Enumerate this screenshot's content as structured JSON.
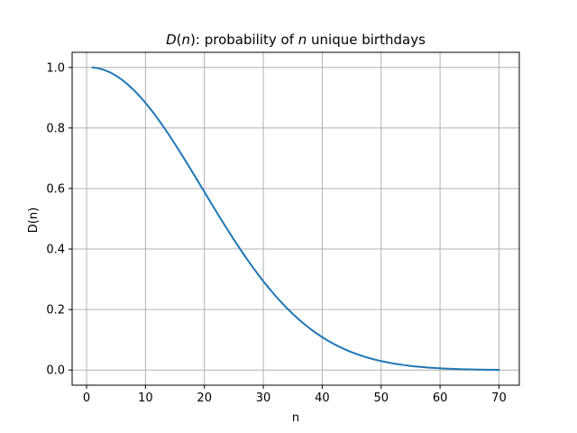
{
  "chart_data": {
    "type": "line",
    "title_parts": [
      "D",
      "(",
      "n",
      "): probability of ",
      "n",
      " unique birthdays"
    ],
    "xlabel": "n",
    "ylabel": "D(n)",
    "xlim": [
      -2.45,
      73.45
    ],
    "ylim": [
      -0.05,
      1.05
    ],
    "xticks": [
      0,
      10,
      20,
      30,
      40,
      50,
      60,
      70
    ],
    "xtick_labels": [
      "0",
      "10",
      "20",
      "30",
      "40",
      "50",
      "60",
      "70"
    ],
    "yticks": [
      0.0,
      0.2,
      0.4,
      0.6,
      0.8,
      1.0
    ],
    "ytick_labels": [
      "0.0",
      "0.2",
      "0.4",
      "0.6",
      "0.8",
      "1.0"
    ],
    "grid": true,
    "series": [
      {
        "color": "#1f77b4",
        "x": [
          1,
          2,
          3,
          4,
          5,
          6,
          7,
          8,
          9,
          10,
          11,
          12,
          13,
          14,
          15,
          16,
          17,
          18,
          19,
          20,
          21,
          22,
          23,
          24,
          25,
          26,
          27,
          28,
          29,
          30,
          31,
          32,
          33,
          34,
          35,
          36,
          37,
          38,
          39,
          40,
          41,
          42,
          43,
          44,
          45,
          46,
          47,
          48,
          49,
          50,
          51,
          52,
          53,
          54,
          55,
          56,
          57,
          58,
          59,
          60,
          61,
          62,
          63,
          64,
          65,
          66,
          67,
          68,
          69,
          70
        ],
        "y": [
          1.0,
          0.99726,
          0.9918,
          0.98364,
          0.97286,
          0.95954,
          0.94376,
          0.92566,
          0.90538,
          0.88305,
          0.85886,
          0.83298,
          0.80559,
          0.7769,
          0.7471,
          0.7164,
          0.68499,
          0.65309,
          0.62088,
          0.58856,
          0.55631,
          0.5243,
          0.4927,
          0.46166,
          0.4313,
          0.40176,
          0.37314,
          0.34554,
          0.31903,
          0.29368,
          0.26955,
          0.24665,
          0.22503,
          0.20468,
          0.18562,
          0.16782,
          0.15127,
          0.13593,
          0.12178,
          0.10877,
          0.09685,
          0.08597,
          0.07608,
          0.06711,
          0.05902,
          0.05175,
          0.04523,
          0.0394,
          0.03422,
          0.02963,
          0.02557,
          0.02199,
          0.01885,
          0.01611,
          0.01372,
          0.01164,
          0.00984,
          0.00829,
          0.00696,
          0.00588,
          0.00482,
          0.00398,
          0.00328,
          0.00269,
          0.0022,
          0.00179,
          0.00145,
          0.00116,
          0.00093,
          0.00084
        ]
      }
    ]
  }
}
